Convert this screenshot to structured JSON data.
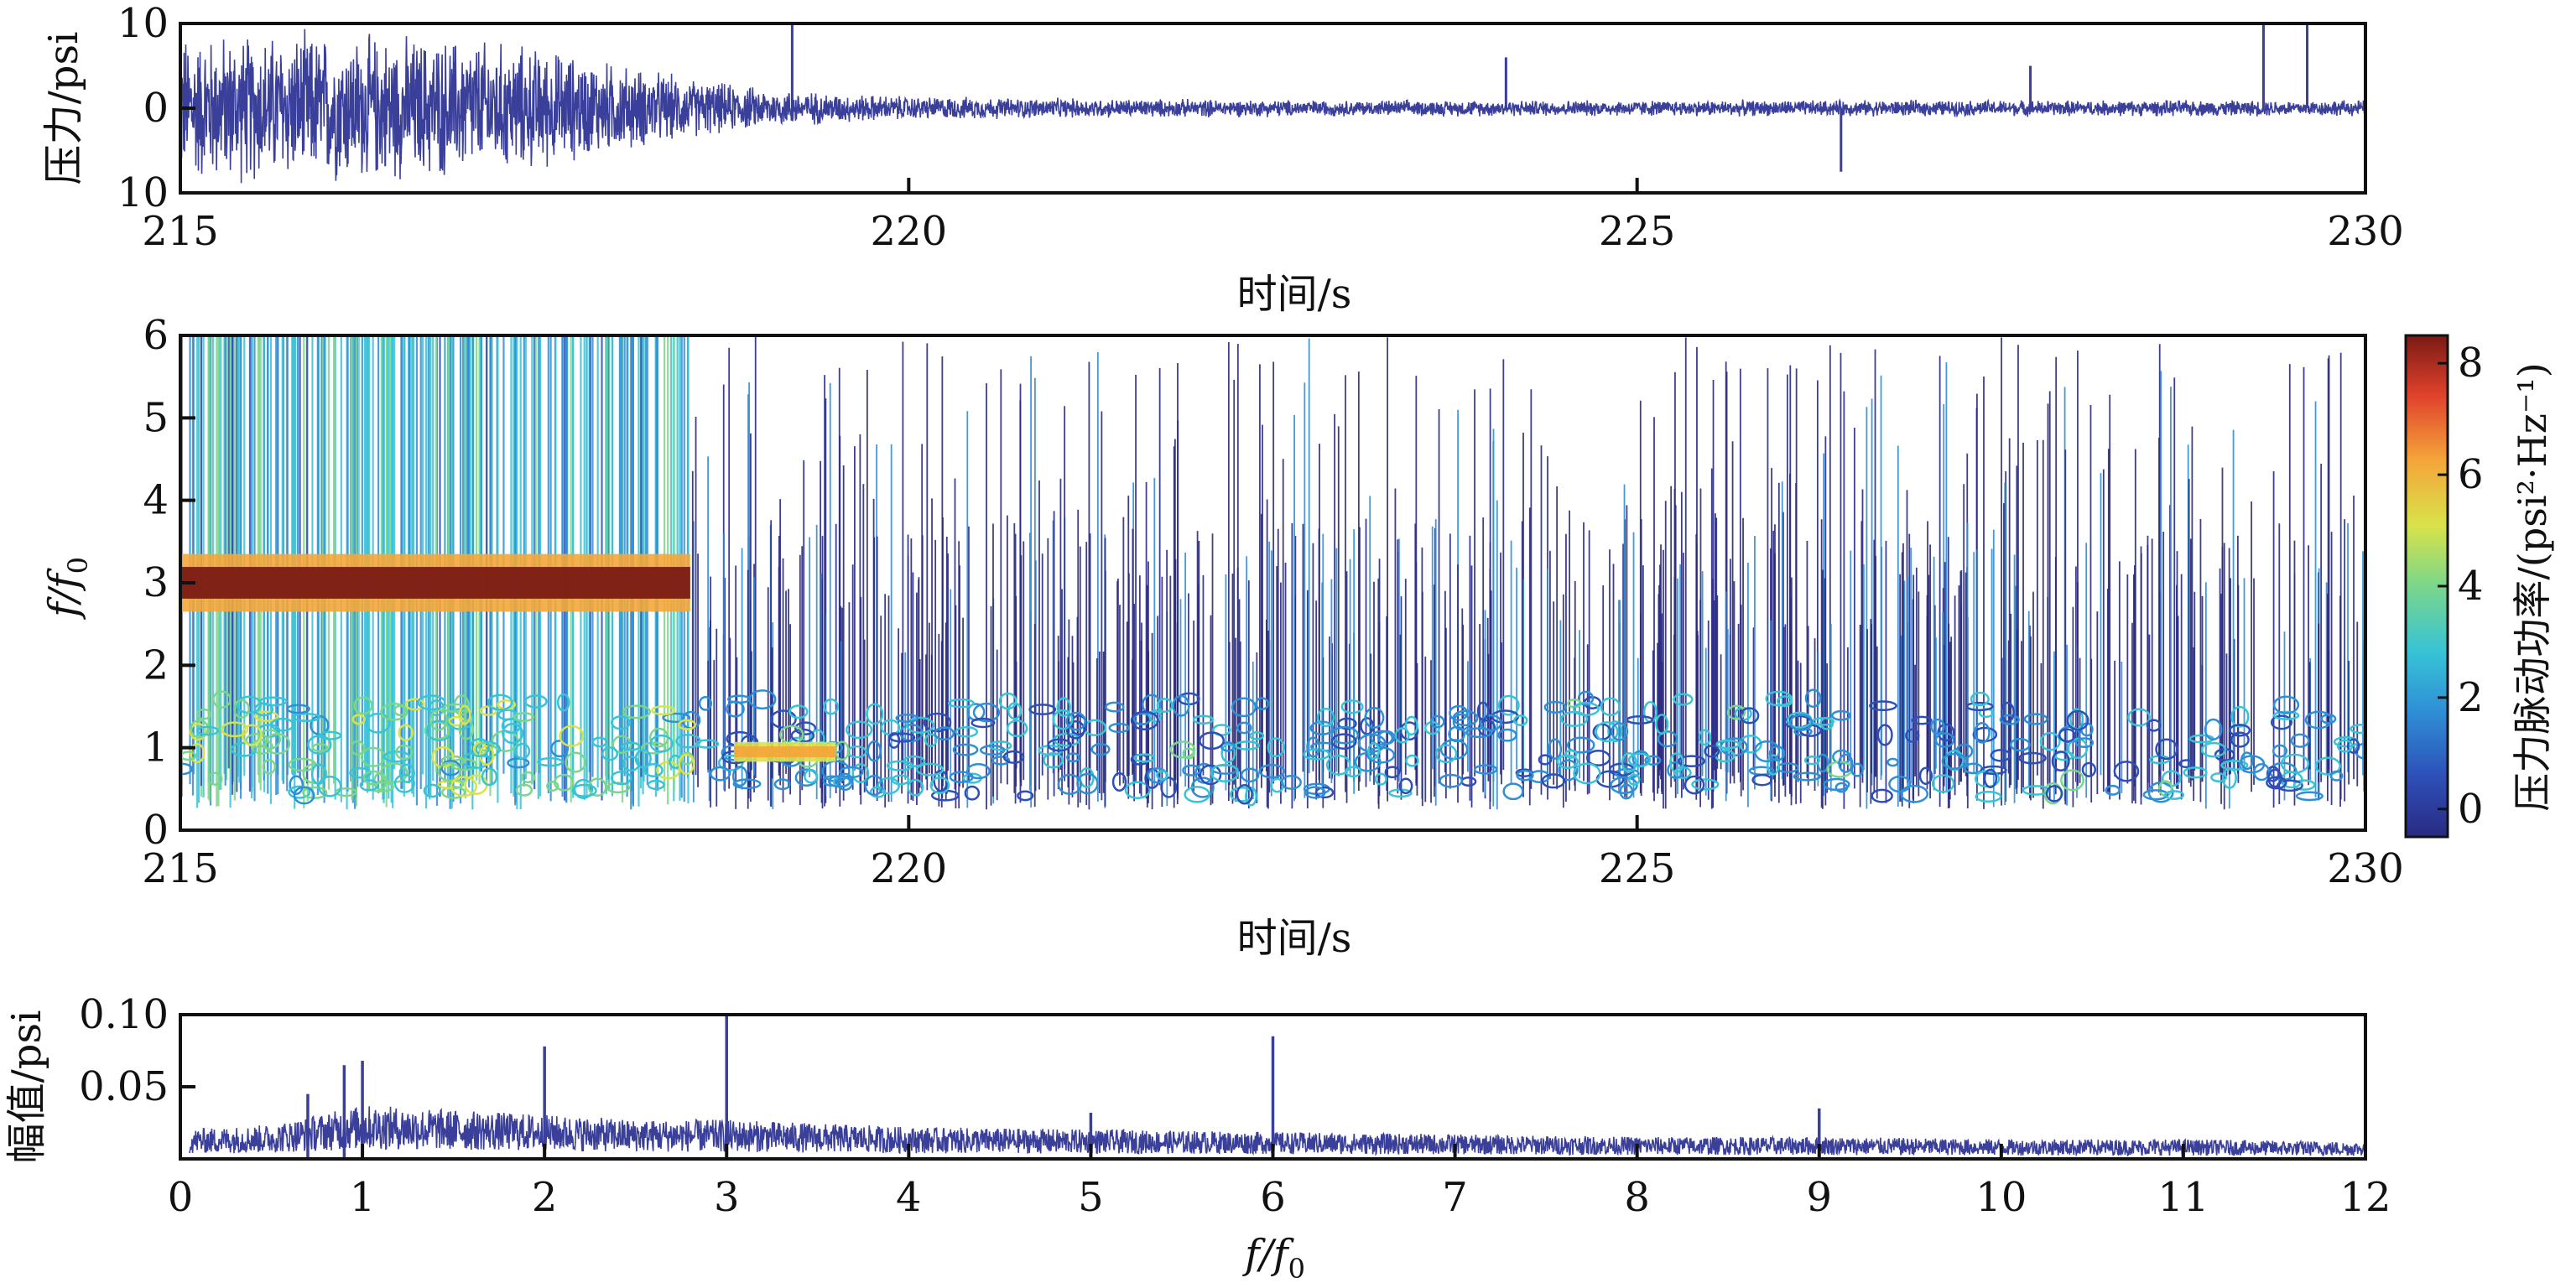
{
  "chart_data": [
    {
      "type": "line",
      "panel": "pressure-time",
      "xlabel": "时间/s",
      "ylabel": "压力/psi",
      "xlim": [
        215,
        230
      ],
      "ylim": [
        -10,
        10
      ],
      "xticks": [
        "215",
        "220",
        "225",
        "230"
      ],
      "yticks": [
        "10",
        "0",
        "10"
      ],
      "color": "#3a3f9a",
      "series": [
        {
          "x": [
            215,
            216,
            217,
            217.5,
            218,
            218.5,
            219,
            219.5,
            220,
            221,
            222,
            223,
            224,
            225,
            226,
            227,
            228,
            229,
            230
          ],
          "amplitude": [
            7.5,
            7.5,
            7,
            6,
            4.5,
            3,
            2,
            1.5,
            1.2,
            1,
            0.9,
            0.8,
            0.8,
            0.8,
            0.8,
            0.8,
            0.8,
            0.8,
            0.8
          ]
        }
      ],
      "spikes": [
        {
          "x": 219.2,
          "y": 10
        },
        {
          "x": 226.4,
          "y": -7.5
        },
        {
          "x": 229.3,
          "y": 10
        },
        {
          "x": 229.6,
          "y": 10
        },
        {
          "x": 224.1,
          "y": 6
        },
        {
          "x": 227.7,
          "y": 5
        }
      ]
    },
    {
      "type": "heatmap",
      "panel": "wavelet-spectrogram",
      "xlabel": "时间/s",
      "ylabel": "f/f0",
      "ylabel_base": "f/f",
      "ylabel_sub": "0",
      "xlim": [
        215,
        230
      ],
      "ylim": [
        0,
        6
      ],
      "xticks": [
        "215",
        "220",
        "225",
        "230"
      ],
      "yticks": [
        "0",
        "1",
        "2",
        "3",
        "4",
        "5",
        "6"
      ],
      "colorbar": {
        "label": "压力脉动功率/(psi²·Hz⁻¹)",
        "range": [
          -0.5,
          8.5
        ],
        "ticks": [
          "0",
          "2",
          "4",
          "6",
          "8"
        ],
        "colors": [
          "#2a2a82",
          "#2e4fb8",
          "#2f8fd6",
          "#38c3d6",
          "#7ad68a",
          "#d8e34a",
          "#f4a63a",
          "#e0422c",
          "#7a1a14"
        ]
      },
      "features": [
        {
          "label": "3 f0 band",
          "time": [
            215,
            218.5
          ],
          "freq": 3.0,
          "power": 8
        },
        {
          "label": "1 f0 hotspot",
          "time": [
            218.8,
            219.5
          ],
          "freq": 0.95,
          "power": 6.5
        },
        {
          "label": "broadband",
          "time": [
            219.5,
            230
          ],
          "freq": [
            0.5,
            3.5
          ],
          "power": 1.5
        }
      ]
    },
    {
      "type": "line",
      "panel": "amplitude-spectrum",
      "xlabel": "f/f0",
      "xlabel_base": "f/f",
      "xlabel_sub": "0",
      "ylabel": "幅值/psi",
      "xlim": [
        0,
        12
      ],
      "ylim": [
        0,
        0.1
      ],
      "xticks": [
        "0",
        "1",
        "2",
        "3",
        "4",
        "5",
        "6",
        "7",
        "8",
        "9",
        "10",
        "11",
        "12"
      ],
      "yticks": [
        "0.05",
        "0.10"
      ],
      "color": "#3a3f9a",
      "series": [
        {
          "x": [
            0,
            0.5,
            1,
            1.5,
            2,
            2.5,
            3,
            4,
            5,
            6,
            7,
            8,
            9,
            10,
            11,
            12
          ],
          "baseline": [
            0.012,
            0.014,
            0.022,
            0.02,
            0.018,
            0.016,
            0.016,
            0.013,
            0.012,
            0.011,
            0.01,
            0.009,
            0.009,
            0.008,
            0.008,
            0.007
          ]
        }
      ],
      "peaks": [
        {
          "x": 0.7,
          "y": 0.045
        },
        {
          "x": 0.9,
          "y": 0.065
        },
        {
          "x": 1.0,
          "y": 0.068
        },
        {
          "x": 2.0,
          "y": 0.078
        },
        {
          "x": 3.0,
          "y": 0.1
        },
        {
          "x": 6.0,
          "y": 0.085
        },
        {
          "x": 9.0,
          "y": 0.035
        },
        {
          "x": 5.0,
          "y": 0.032
        }
      ]
    }
  ]
}
